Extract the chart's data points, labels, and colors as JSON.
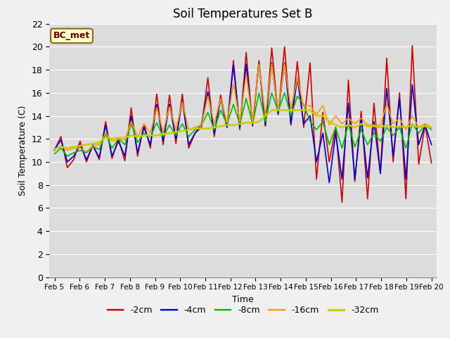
{
  "title": "Soil Temperatures Set B",
  "xlabel": "Time",
  "ylabel": "Soil Temperature (C)",
  "ylim": [
    0,
    22
  ],
  "yticks": [
    0,
    2,
    4,
    6,
    8,
    10,
    12,
    14,
    16,
    18,
    20,
    22
  ],
  "x_labels": [
    "Feb 5",
    "Feb 6",
    "Feb 7",
    "Feb 8",
    "Feb 9",
    "Feb 10",
    "Feb 11",
    "Feb 12",
    "Feb 13",
    "Feb 14",
    "Feb 15",
    "Feb 16",
    "Feb 17",
    "Feb 18",
    "Feb 19",
    "Feb 20"
  ],
  "annotation_text": "BC_met",
  "annotation_bg": "#ffffcc",
  "annotation_border": "#8B6914",
  "series": {
    "-2cm": {
      "color": "#cc0000",
      "lw": 1.2
    },
    "-4cm": {
      "color": "#0000cc",
      "lw": 1.2
    },
    "-8cm": {
      "color": "#00bb00",
      "lw": 1.2
    },
    "-16cm": {
      "color": "#ff9900",
      "lw": 1.2
    },
    "-32cm": {
      "color": "#cccc00",
      "lw": 1.8
    }
  },
  "data_2cm": [
    11.0,
    12.2,
    9.5,
    10.2,
    11.8,
    10.0,
    11.5,
    10.2,
    13.5,
    10.3,
    12.0,
    10.1,
    14.7,
    10.5,
    13.3,
    11.2,
    15.9,
    11.5,
    15.8,
    11.6,
    15.9,
    11.2,
    12.5,
    13.0,
    17.3,
    12.2,
    15.8,
    13.0,
    18.8,
    12.8,
    19.5,
    13.1,
    18.8,
    13.1,
    19.9,
    14.1,
    20.0,
    13.2,
    18.7,
    13.0,
    18.6,
    8.5,
    14.3,
    10.0,
    13.0,
    6.5,
    17.1,
    8.3,
    14.4,
    6.8,
    15.1,
    9.0,
    19.0,
    10.0,
    16.0,
    6.8,
    20.1,
    9.8,
    13.2,
    9.9
  ],
  "data_4cm": [
    11.1,
    11.9,
    10.0,
    10.5,
    11.5,
    10.2,
    11.4,
    10.4,
    13.2,
    10.5,
    11.8,
    10.5,
    14.0,
    10.8,
    13.0,
    11.5,
    15.0,
    11.8,
    15.0,
    12.0,
    15.3,
    11.5,
    12.5,
    13.3,
    16.1,
    12.5,
    15.5,
    13.0,
    18.4,
    13.0,
    18.5,
    13.2,
    18.6,
    13.2,
    18.6,
    14.2,
    18.6,
    13.3,
    17.3,
    13.3,
    14.0,
    10.0,
    12.5,
    8.2,
    12.5,
    8.5,
    15.1,
    8.5,
    13.8,
    8.6,
    13.5,
    9.0,
    16.4,
    10.5,
    15.5,
    8.5,
    16.7,
    11.5,
    13.2,
    11.5
  ],
  "data_8cm": [
    10.7,
    11.2,
    10.5,
    10.8,
    11.0,
    10.8,
    11.3,
    11.1,
    12.4,
    11.2,
    12.0,
    11.5,
    13.3,
    11.7,
    12.5,
    12.2,
    13.4,
    12.2,
    13.2,
    12.3,
    13.3,
    12.2,
    12.8,
    13.2,
    14.3,
    12.8,
    14.5,
    13.3,
    15.0,
    13.3,
    15.5,
    13.3,
    16.0,
    13.5,
    16.0,
    14.4,
    16.0,
    14.0,
    15.7,
    15.0,
    13.5,
    12.8,
    13.5,
    11.5,
    13.0,
    11.2,
    13.3,
    11.3,
    12.8,
    11.5,
    12.5,
    11.8,
    13.0,
    12.3,
    13.0,
    11.2,
    13.3,
    12.5,
    13.2,
    12.8
  ],
  "data_16cm": [
    11.1,
    11.4,
    11.0,
    11.2,
    11.2,
    10.9,
    11.4,
    11.5,
    12.5,
    11.8,
    12.0,
    11.9,
    13.5,
    12.2,
    13.3,
    12.5,
    14.7,
    12.6,
    14.8,
    12.8,
    15.2,
    12.8,
    13.0,
    13.2,
    15.7,
    13.3,
    15.5,
    13.4,
    16.8,
    13.5,
    17.6,
    13.5,
    18.5,
    14.0,
    18.5,
    14.5,
    18.5,
    14.6,
    17.3,
    14.8,
    14.9,
    14.1,
    14.9,
    13.2,
    14.0,
    13.3,
    13.8,
    13.3,
    13.8,
    13.2,
    13.2,
    13.2,
    15.0,
    13.3,
    13.8,
    12.8,
    14.0,
    13.0,
    13.3,
    13.0
  ],
  "data_32cm": [
    11.1,
    11.3,
    11.2,
    11.3,
    11.4,
    11.5,
    11.6,
    11.7,
    12.1,
    12.0,
    12.1,
    12.1,
    12.3,
    12.2,
    12.3,
    12.3,
    12.3,
    12.4,
    12.5,
    12.6,
    12.7,
    12.8,
    12.9,
    12.9,
    12.9,
    13.0,
    13.1,
    13.2,
    13.2,
    13.3,
    13.4,
    13.4,
    13.5,
    14.0,
    14.5,
    14.5,
    14.5,
    14.5,
    14.5,
    14.5,
    14.5,
    14.0,
    14.0,
    13.5,
    13.2,
    13.0,
    13.2,
    13.0,
    13.3,
    13.1,
    13.1,
    13.0,
    13.2,
    13.0,
    13.1,
    13.0,
    13.2,
    13.0,
    13.1,
    13.0
  ]
}
